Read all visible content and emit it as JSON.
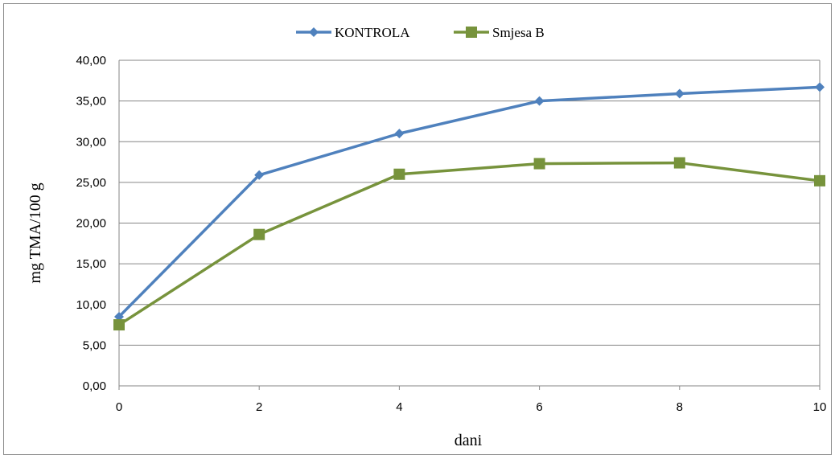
{
  "chart_data": {
    "type": "line",
    "title": "",
    "xlabel": "dani",
    "ylabel": "mg TMA/100 g",
    "x": [
      0,
      2,
      4,
      6,
      8,
      10
    ],
    "xlim": [
      0,
      10
    ],
    "ylim": [
      0,
      40
    ],
    "x_ticks": [
      "0",
      "2",
      "4",
      "6",
      "8",
      "10"
    ],
    "y_ticks": [
      "0,00",
      "5,00",
      "10,00",
      "15,00",
      "20,00",
      "25,00",
      "30,00",
      "35,00",
      "40,00"
    ],
    "grid": "horizontal",
    "legend_position": "top",
    "series": [
      {
        "name": "KONTROLA",
        "values": [
          8.5,
          25.9,
          31.0,
          35.0,
          35.9,
          36.7
        ],
        "color": "#4F81BD",
        "marker": "diamond"
      },
      {
        "name": "Smjesa B",
        "values": [
          7.5,
          18.6,
          26.0,
          27.3,
          27.4,
          25.2
        ],
        "color": "#77933C",
        "marker": "square"
      }
    ]
  }
}
